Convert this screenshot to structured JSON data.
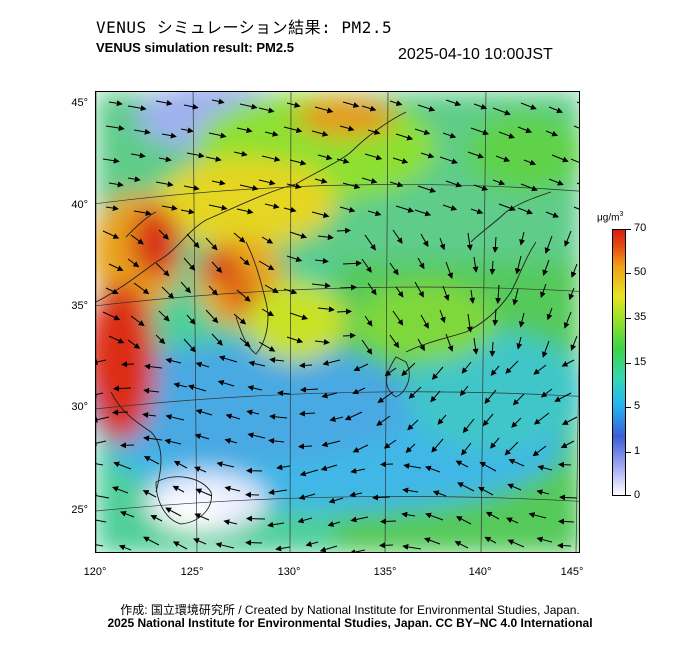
{
  "header": {
    "title_jp": "VENUS シミュレーション結果: PM2.5",
    "title_en": "VENUS simulation result: PM2.5",
    "timestamp": "2025-04-10 10:00JST"
  },
  "map": {
    "region": "East Asia",
    "longitude_range_deg": [
      120,
      145
    ],
    "latitude_range_deg": [
      23,
      46
    ],
    "lat_labels": [
      "45°",
      "40°",
      "35°",
      "30°",
      "25°"
    ],
    "lon_labels": [
      "120°",
      "125°",
      "130°",
      "135°",
      "140°",
      "145°"
    ],
    "layers": [
      "pm2.5-concentration-field",
      "wind-vectors",
      "coastlines",
      "graticule"
    ]
  },
  "colorbar": {
    "unit_text": "μg/m",
    "unit_superscript": "3",
    "tick_labels": [
      "70",
      "50",
      "35",
      "15",
      "5",
      "1",
      "0"
    ],
    "tick_values": [
      70,
      50,
      35,
      15,
      5,
      1,
      0
    ],
    "colors": [
      "#ffffff",
      "#a9aef5",
      "#3b5ed6",
      "#25b4ef",
      "#36d6b5",
      "#3cd24a",
      "#8fe02e",
      "#e7e423",
      "#f0a319",
      "#e44a13",
      "#d81e10"
    ]
  },
  "footer": {
    "credit": "作成: 国立環境研究所 / Created by National Institute for Environmental Studies, Japan.",
    "license": "2025 National Institute for Environmental Studies, Japan. CC BY−NC 4.0 International"
  }
}
